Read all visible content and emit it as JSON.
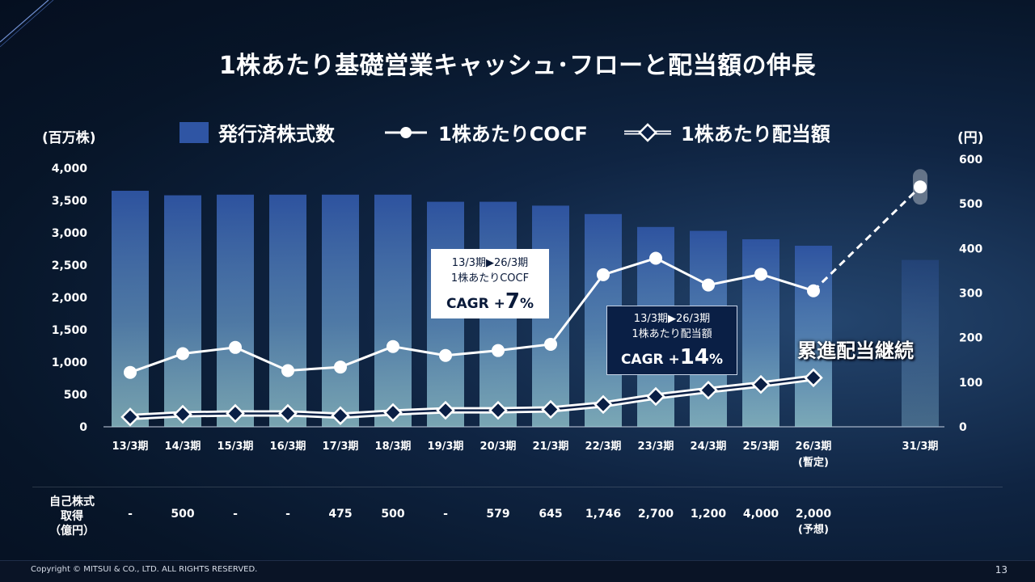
{
  "title": "1株あたり基礎営業キャッシュ･フローと配当額の伸長",
  "legend": {
    "shares": "発行済株式数",
    "cocf": "1株あたりCOCF",
    "dividend": "1株あたり配当額"
  },
  "axis": {
    "left_unit": "(百万株)",
    "right_unit": "(円)"
  },
  "callouts": {
    "cocf": {
      "line1": "13/3期▶26/3期",
      "line2": "1株あたりCOCF",
      "cagr_label": "CAGR +",
      "cagr_num": "7",
      "cagr_pct": "%"
    },
    "dividend": {
      "line1": "13/3期▶26/3期",
      "line2": "1株あたり配当額",
      "cagr_label": "CAGR +",
      "cagr_num": "14",
      "cagr_pct": "%"
    }
  },
  "progressive_label": "累進配当継続",
  "buyback": {
    "label_line1": "自己株式",
    "label_line2": "取得",
    "label_line3": "（億円）",
    "values": [
      "-",
      "500",
      "-",
      "-",
      "475",
      "500",
      "-",
      "579",
      "645",
      "1,746",
      "2,700",
      "1,200",
      "4,000",
      "2,000"
    ],
    "last_note": "(予想)"
  },
  "colors": {
    "bar_top": "#2f55a4",
    "bar_bottom": "#8fc3d4",
    "cocf_line": "#ffffff",
    "dividend_line": "#ffffff",
    "dividend_marker": "#0a1f45"
  },
  "footer": {
    "copyright": "Copyright © MITSUI & CO., LTD. ALL RIGHTS RESERVED.",
    "page": "13"
  },
  "chart_data": {
    "type": "bar+line",
    "categories": [
      "13/3期",
      "14/3期",
      "15/3期",
      "16/3期",
      "17/3期",
      "18/3期",
      "19/3期",
      "20/3期",
      "21/3期",
      "22/3期",
      "23/3期",
      "24/3期",
      "25/3期",
      "26/3期",
      "31/3期"
    ],
    "category_notes": {
      "26/3期": "(暫定)"
    },
    "left_axis": {
      "ticks": [
        "0",
        "500",
        "1,000",
        "1,500",
        "2,000",
        "2,500",
        "3,000",
        "3,500",
        "4,000"
      ],
      "ylim": [
        0,
        4000
      ]
    },
    "right_axis": {
      "ticks": [
        "0",
        "100",
        "200",
        "300",
        "400",
        "500",
        "600"
      ],
      "ylim": [
        0,
        600
      ]
    },
    "series": [
      {
        "name": "発行済株式数",
        "type": "bar",
        "axis": "left",
        "values": [
          3650,
          3580,
          3590,
          3590,
          3590,
          3590,
          3480,
          3480,
          3420,
          3290,
          3090,
          3030,
          2900,
          2800,
          2580
        ]
      },
      {
        "name": "1株あたりCOCF",
        "type": "line",
        "axis": "right",
        "values": [
          122,
          164,
          178,
          126,
          134,
          180,
          160,
          171,
          185,
          341,
          378,
          318,
          342,
          305,
          538
        ]
      },
      {
        "name": "1株あたり配当額",
        "type": "line",
        "axis": "right",
        "values": [
          22,
          28,
          30,
          30,
          25,
          32,
          37,
          37,
          39,
          50,
          68,
          82,
          95,
          110,
          null
        ]
      }
    ]
  }
}
